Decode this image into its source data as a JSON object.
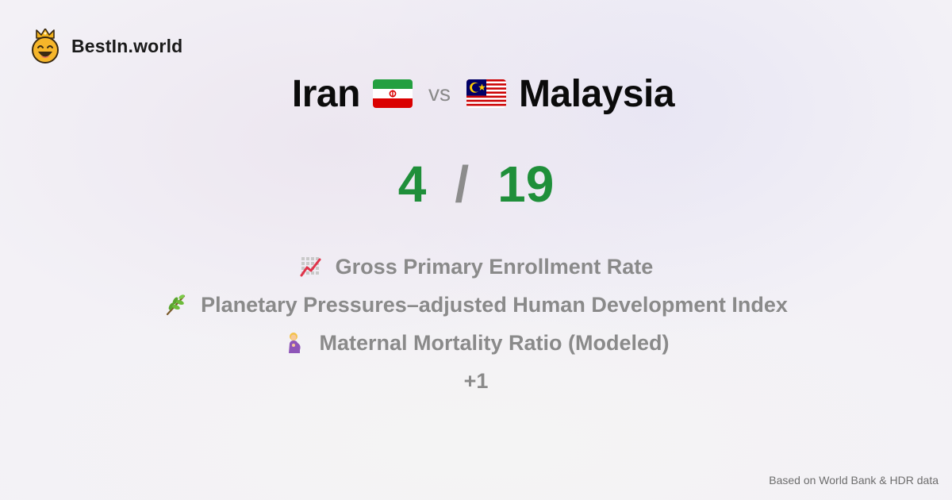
{
  "brand": {
    "name": "BestIn.world",
    "logo_icon": "laughing-king-face-icon"
  },
  "comparison": {
    "left_country": "Iran",
    "left_flag": "iran-flag-icon",
    "vs_label": "vs",
    "right_country": "Malaysia",
    "right_flag": "malaysia-flag-icon"
  },
  "score": {
    "left": "4",
    "separator": "/",
    "right": "19",
    "color": "#1f8f3a"
  },
  "metrics": [
    {
      "icon": "chart-increasing-icon",
      "label": "Gross Primary Enrollment Rate"
    },
    {
      "icon": "herb-icon",
      "label": "Planetary Pressures–adjusted Human Development Index"
    },
    {
      "icon": "pregnant-woman-icon",
      "label": "Maternal Mortality Ratio (Modeled)"
    }
  ],
  "more_count": "+1",
  "footer": {
    "source": "Based on World Bank & HDR data"
  }
}
